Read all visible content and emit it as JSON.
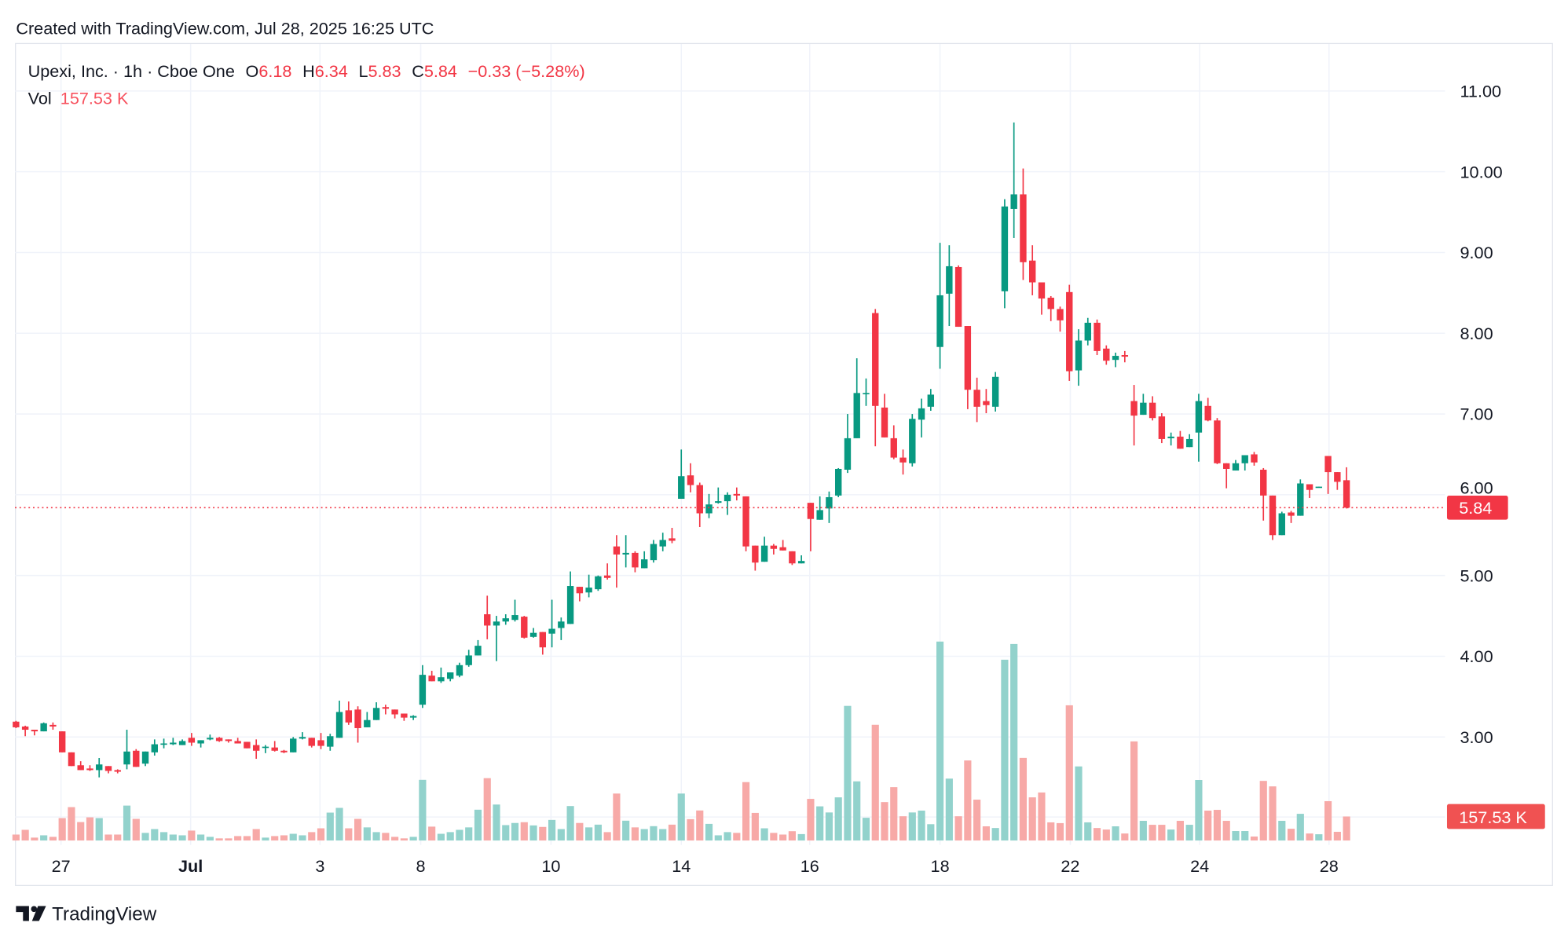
{
  "header": {
    "created_with": "Created with TradingView.com, Jul 28, 2025 16:25 UTC"
  },
  "legend": {
    "symbol": "Upexi, Inc. · 1h · Cboe One",
    "open_label": "O",
    "open": "6.18",
    "high_label": "H",
    "high": "6.34",
    "low_label": "L",
    "low": "5.83",
    "close_label": "C",
    "close": "5.84",
    "change": "−0.33 (−5.28%)",
    "vol_label": "Vol",
    "vol": "157.53 K"
  },
  "price_axis": {
    "ticks": [
      {
        "value": 11,
        "label": "11.00"
      },
      {
        "value": 10,
        "label": "10.00"
      },
      {
        "value": 9,
        "label": "9.00"
      },
      {
        "value": 8,
        "label": "8.00"
      },
      {
        "value": 7,
        "label": "7.00"
      },
      {
        "value": 6,
        "label": "6.00"
      },
      {
        "value": 5,
        "label": "5.00"
      },
      {
        "value": 4,
        "label": "4.00"
      },
      {
        "value": 3,
        "label": "3.00"
      }
    ],
    "last_price": 5.84,
    "last_price_label": "5.84",
    "last_volume_label": "157.53 K"
  },
  "footer": {
    "brand": "TradingView"
  },
  "colors": {
    "up": "#089981",
    "down": "#F23645",
    "volume_up": "#92D2CC",
    "volume_down": "#F7A9A7",
    "grid": "#F0F3FA",
    "text": "#131722"
  },
  "chart_data": {
    "type": "candlestick",
    "interval": "1h",
    "ylim": [
      2.2,
      11.6
    ],
    "grid": true,
    "x_tick_labels": [
      "27",
      "Jul",
      "3",
      "8",
      "10",
      "14",
      "16",
      "18",
      "22",
      "24",
      "28"
    ],
    "candles_ohlc": [
      [
        3.19,
        3.2,
        3.11,
        3.12
      ],
      [
        3.13,
        3.14,
        3.01,
        3.09
      ],
      [
        3.09,
        3.09,
        3.02,
        3.07
      ],
      [
        3.07,
        3.18,
        3.07,
        3.17
      ],
      [
        3.15,
        3.18,
        3.09,
        3.13
      ],
      [
        3.07,
        3.07,
        2.81,
        2.81
      ],
      [
        2.81,
        2.81,
        2.64,
        2.64
      ],
      [
        2.65,
        2.7,
        2.59,
        2.59
      ],
      [
        2.61,
        2.65,
        2.58,
        2.59
      ],
      [
        2.59,
        2.74,
        2.5,
        2.66
      ],
      [
        2.64,
        2.64,
        2.55,
        2.58
      ],
      [
        2.59,
        2.6,
        2.55,
        2.57
      ],
      [
        2.66,
        3.09,
        2.6,
        2.82
      ],
      [
        2.83,
        2.85,
        2.63,
        2.63
      ],
      [
        2.67,
        2.82,
        2.64,
        2.82
      ],
      [
        2.81,
        2.97,
        2.77,
        2.91
      ],
      [
        2.91,
        2.98,
        2.86,
        2.92
      ],
      [
        2.91,
        2.99,
        2.9,
        2.93
      ],
      [
        2.9,
        2.97,
        2.9,
        2.95
      ],
      [
        2.99,
        3.05,
        2.89,
        2.93
      ],
      [
        2.92,
        2.96,
        2.87,
        2.96
      ],
      [
        2.97,
        3.03,
        2.96,
        2.99
      ],
      [
        2.99,
        3.0,
        2.94,
        2.95
      ],
      [
        2.97,
        2.97,
        2.93,
        2.95
      ],
      [
        2.95,
        2.99,
        2.92,
        2.92
      ],
      [
        2.94,
        2.94,
        2.86,
        2.86
      ],
      [
        2.9,
        2.97,
        2.73,
        2.83
      ],
      [
        2.87,
        2.9,
        2.8,
        2.88
      ],
      [
        2.87,
        2.95,
        2.82,
        2.83
      ],
      [
        2.83,
        2.84,
        2.8,
        2.81
      ],
      [
        2.81,
        3.0,
        2.81,
        2.98
      ],
      [
        2.98,
        3.06,
        2.97,
        3.0
      ],
      [
        2.99,
        2.99,
        2.87,
        2.89
      ],
      [
        2.96,
        3.05,
        2.85,
        2.89
      ],
      [
        2.88,
        3.04,
        2.83,
        3.01
      ],
      [
        2.99,
        3.45,
        2.99,
        3.31
      ],
      [
        3.33,
        3.44,
        3.15,
        3.18
      ],
      [
        3.34,
        3.38,
        2.93,
        3.11
      ],
      [
        3.12,
        3.31,
        3.12,
        3.21
      ],
      [
        3.21,
        3.43,
        3.21,
        3.36
      ],
      [
        3.37,
        3.4,
        3.28,
        3.35
      ],
      [
        3.34,
        3.34,
        3.23,
        3.28
      ],
      [
        3.29,
        3.29,
        3.2,
        3.24
      ],
      [
        3.24,
        3.27,
        3.21,
        3.26
      ],
      [
        3.4,
        3.89,
        3.36,
        3.77
      ],
      [
        3.76,
        3.82,
        3.69,
        3.69
      ],
      [
        3.69,
        3.86,
        3.67,
        3.74
      ],
      [
        3.72,
        3.8,
        3.69,
        3.8
      ],
      [
        3.76,
        3.92,
        3.74,
        3.89
      ],
      [
        3.89,
        4.08,
        3.87,
        4.01
      ],
      [
        4.01,
        4.2,
        4.01,
        4.13
      ],
      [
        4.52,
        4.75,
        4.21,
        4.38
      ],
      [
        4.38,
        4.5,
        3.94,
        4.43
      ],
      [
        4.43,
        4.52,
        4.39,
        4.47
      ],
      [
        4.45,
        4.7,
        4.43,
        4.51
      ],
      [
        4.49,
        4.5,
        4.22,
        4.23
      ],
      [
        4.24,
        4.35,
        4.23,
        4.29
      ],
      [
        4.3,
        4.3,
        4.02,
        4.11
      ],
      [
        4.28,
        4.7,
        4.11,
        4.34
      ],
      [
        4.35,
        4.48,
        4.2,
        4.43
      ],
      [
        4.4,
        5.05,
        4.4,
        4.87
      ],
      [
        4.86,
        4.86,
        4.68,
        4.78
      ],
      [
        4.79,
        5.01,
        4.73,
        4.85
      ],
      [
        4.83,
        5.0,
        4.81,
        4.99
      ],
      [
        5.0,
        5.15,
        4.95,
        4.97
      ],
      [
        5.36,
        5.5,
        4.85,
        5.26
      ],
      [
        5.26,
        5.5,
        5.1,
        5.28
      ],
      [
        5.28,
        5.3,
        5.04,
        5.1
      ],
      [
        5.09,
        5.3,
        5.09,
        5.2
      ],
      [
        5.19,
        5.44,
        5.16,
        5.39
      ],
      [
        5.36,
        5.53,
        5.3,
        5.44
      ],
      [
        5.46,
        5.59,
        5.4,
        5.43
      ],
      [
        5.95,
        6.56,
        5.95,
        6.23
      ],
      [
        6.24,
        6.39,
        6.03,
        6.12
      ],
      [
        6.12,
        6.15,
        5.6,
        5.77
      ],
      [
        5.77,
        6.01,
        5.71,
        5.88
      ],
      [
        5.9,
        6.09,
        5.89,
        5.92
      ],
      [
        5.92,
        6.03,
        5.75,
        6.0
      ],
      [
        6.01,
        6.09,
        5.93,
        5.99
      ],
      [
        5.98,
        5.98,
        5.3,
        5.36
      ],
      [
        5.37,
        5.37,
        5.06,
        5.16
      ],
      [
        5.17,
        5.48,
        5.17,
        5.37
      ],
      [
        5.37,
        5.39,
        5.26,
        5.33
      ],
      [
        5.35,
        5.44,
        5.31,
        5.31
      ],
      [
        5.3,
        5.3,
        5.13,
        5.15
      ],
      [
        5.15,
        5.25,
        5.15,
        5.18
      ],
      [
        5.9,
        5.9,
        5.3,
        5.7
      ],
      [
        5.69,
        5.98,
        5.69,
        5.81
      ],
      [
        5.83,
        6.04,
        5.65,
        5.97
      ],
      [
        5.99,
        6.33,
        5.97,
        6.32
      ],
      [
        6.31,
        7.0,
        6.27,
        6.7
      ],
      [
        6.7,
        7.69,
        6.7,
        7.26
      ],
      [
        7.25,
        7.44,
        7.1,
        7.26
      ],
      [
        8.25,
        8.3,
        6.6,
        7.1
      ],
      [
        7.08,
        7.25,
        6.71,
        6.71
      ],
      [
        6.7,
        6.86,
        6.44,
        6.46
      ],
      [
        6.46,
        6.56,
        6.25,
        6.4
      ],
      [
        6.39,
        7.0,
        6.35,
        6.94
      ],
      [
        6.93,
        7.19,
        6.71,
        7.07
      ],
      [
        7.09,
        7.31,
        7.04,
        7.24
      ],
      [
        7.83,
        9.12,
        7.56,
        8.47
      ],
      [
        8.49,
        9.09,
        8.09,
        8.83
      ],
      [
        8.82,
        8.84,
        8.08,
        8.08
      ],
      [
        8.09,
        8.09,
        7.06,
        7.3
      ],
      [
        7.3,
        7.45,
        6.9,
        7.09
      ],
      [
        7.16,
        7.31,
        7.01,
        7.11
      ],
      [
        7.09,
        7.52,
        7.03,
        7.46
      ],
      [
        8.52,
        9.66,
        8.31,
        9.57
      ],
      [
        9.54,
        10.61,
        9.18,
        9.72
      ],
      [
        9.72,
        10.04,
        8.66,
        8.88
      ],
      [
        8.9,
        9.09,
        8.47,
        8.63
      ],
      [
        8.63,
        8.63,
        8.23,
        8.43
      ],
      [
        8.44,
        8.46,
        8.15,
        8.3
      ],
      [
        8.3,
        8.33,
        8.02,
        8.16
      ],
      [
        8.51,
        8.6,
        7.41,
        7.53
      ],
      [
        7.54,
        8.05,
        7.35,
        7.91
      ],
      [
        7.91,
        8.19,
        7.85,
        8.13
      ],
      [
        8.13,
        8.17,
        7.73,
        7.78
      ],
      [
        7.81,
        7.85,
        7.61,
        7.66
      ],
      [
        7.67,
        7.76,
        7.58,
        7.72
      ],
      [
        7.73,
        7.78,
        7.64,
        7.71
      ],
      [
        7.16,
        7.36,
        6.61,
        6.98
      ],
      [
        6.99,
        7.25,
        6.99,
        7.14
      ],
      [
        7.14,
        7.22,
        6.92,
        6.95
      ],
      [
        6.97,
        7.01,
        6.64,
        6.69
      ],
      [
        6.7,
        6.77,
        6.61,
        6.72
      ],
      [
        6.72,
        6.79,
        6.57,
        6.57
      ],
      [
        6.59,
        6.75,
        6.59,
        6.69
      ],
      [
        6.77,
        7.25,
        6.41,
        7.16
      ],
      [
        7.1,
        7.2,
        6.91,
        6.92
      ],
      [
        6.92,
        6.95,
        6.38,
        6.39
      ],
      [
        6.39,
        6.39,
        6.08,
        6.32
      ],
      [
        6.3,
        6.43,
        6.3,
        6.39
      ],
      [
        6.39,
        6.49,
        6.3,
        6.49
      ],
      [
        6.5,
        6.53,
        6.36,
        6.4
      ],
      [
        6.31,
        6.33,
        5.68,
        5.99
      ],
      [
        5.99,
        5.99,
        5.44,
        5.5
      ],
      [
        5.5,
        5.79,
        5.5,
        5.77
      ],
      [
        5.78,
        5.8,
        5.65,
        5.74
      ],
      [
        5.74,
        6.19,
        5.74,
        6.14
      ],
      [
        6.13,
        6.13,
        5.96,
        6.06
      ],
      [
        6.09,
        6.1,
        6.09,
        6.1
      ],
      [
        6.48,
        6.48,
        6.01,
        6.28
      ],
      [
        6.28,
        6.28,
        6.06,
        6.16
      ],
      [
        6.18,
        6.34,
        5.83,
        5.84
      ]
    ],
    "volume_k": [
      39,
      70,
      19,
      34,
      24,
      147,
      219,
      121,
      152,
      147,
      39,
      39,
      229,
      142,
      50,
      75,
      55,
      39,
      34,
      65,
      39,
      24,
      14,
      14,
      29,
      29,
      75,
      19,
      29,
      34,
      44,
      34,
      55,
      80,
      183,
      214,
      80,
      142,
      86,
      55,
      50,
      24,
      14,
      24,
      398,
      91,
      44,
      55,
      70,
      86,
      202,
      409,
      236,
      101,
      115,
      120,
      99,
      89,
      135,
      75,
      226,
      115,
      86,
      104,
      55,
      308,
      130,
      86,
      75,
      94,
      75,
      104,
      308,
      140,
      197,
      109,
      34,
      55,
      50,
      383,
      181,
      80,
      50,
      39,
      61,
      42,
      273,
      224,
      184,
      283,
      883,
      388,
      149,
      759,
      252,
      350,
      159,
      184,
      196,
      107,
      1305,
      406,
      159,
      525,
      268,
      93,
      82,
      1186,
      1289,
      542,
      283,
      315,
      119,
      114,
      887,
      486,
      119,
      82,
      72,
      93,
      46,
      650,
      129,
      103,
      103,
      72,
      129,
      103,
      397,
      196,
      201,
      129,
      62,
      62,
      26,
      391,
      355,
      129,
      77,
      175,
      46,
      41,
      258,
      57,
      157.53
    ]
  }
}
